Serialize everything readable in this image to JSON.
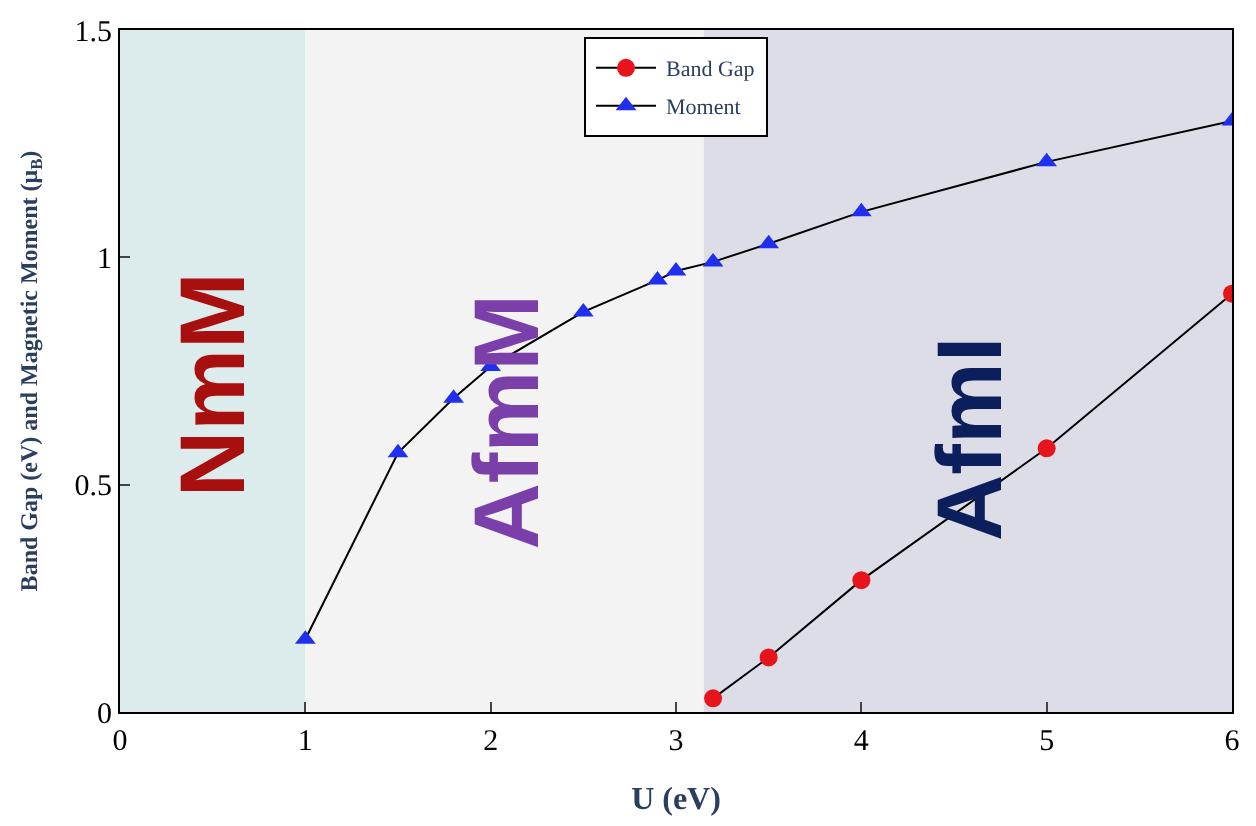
{
  "chart_data": {
    "type": "line",
    "xlabel": "U (eV)",
    "ylabel": "Band Gap (eV) and Magnetic Moment (μ$_{B}$)",
    "xlim": [
      0,
      6
    ],
    "xticks": [
      0,
      1,
      2,
      3,
      4,
      5,
      6
    ],
    "ylim": [
      0,
      1.5
    ],
    "yticks": [
      0,
      0.5,
      1,
      1.5
    ],
    "bands": [
      {
        "axis": "x",
        "from": 0,
        "to": 1,
        "label": "NmM",
        "color": "#dcecec"
      },
      {
        "axis": "x",
        "from": 1,
        "to": 3.15,
        "label": "AfmM",
        "color": "#f3f3f3"
      },
      {
        "axis": "x",
        "from": 3.15,
        "to": 6,
        "label": "AfmI",
        "color": "#dddde8"
      }
    ],
    "series": [
      {
        "name": "Band Gap",
        "color": "#e8141c",
        "marker": "circle",
        "x": [
          3.2,
          3.5,
          4,
          5,
          6
        ],
        "values": [
          0.03,
          0.12,
          0.29,
          0.58,
          0.92
        ]
      },
      {
        "name": "Moment",
        "color": "#1f2ff0",
        "marker": "triangle",
        "x": [
          1,
          1.5,
          1.8,
          2,
          2.5,
          2.9,
          3,
          3.2,
          3.5,
          4,
          5,
          6
        ],
        "values": [
          0.16,
          0.57,
          0.69,
          0.76,
          0.88,
          0.95,
          0.97,
          0.99,
          1.03,
          1.1,
          1.21,
          1.3
        ]
      }
    ],
    "legend": "top",
    "grid": false
  }
}
